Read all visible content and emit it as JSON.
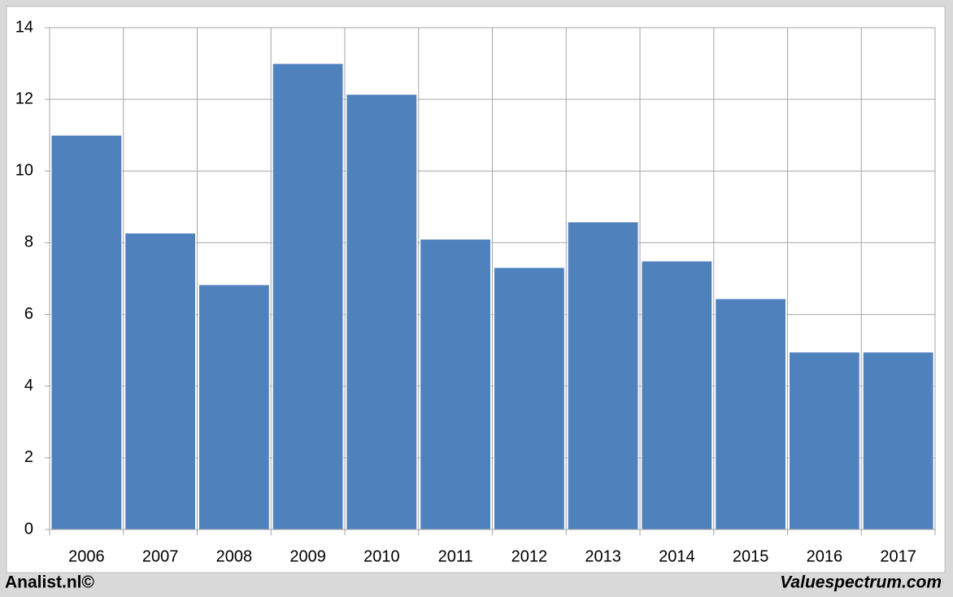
{
  "chart_data": {
    "type": "bar",
    "categories": [
      "2006",
      "2007",
      "2008",
      "2009",
      "2010",
      "2011",
      "2012",
      "2013",
      "2014",
      "2015",
      "2016",
      "2017"
    ],
    "values": [
      11.0,
      8.27,
      6.83,
      13.0,
      12.14,
      8.1,
      7.31,
      8.58,
      7.49,
      6.44,
      4.95,
      4.95
    ],
    "color": "#4f81bd",
    "ylim": [
      0,
      14
    ],
    "yticks": [
      0,
      2,
      4,
      6,
      8,
      10,
      12,
      14
    ],
    "grid": true
  },
  "footer": {
    "left": "Analist.nl©",
    "right": "Valuespectrum.com"
  }
}
